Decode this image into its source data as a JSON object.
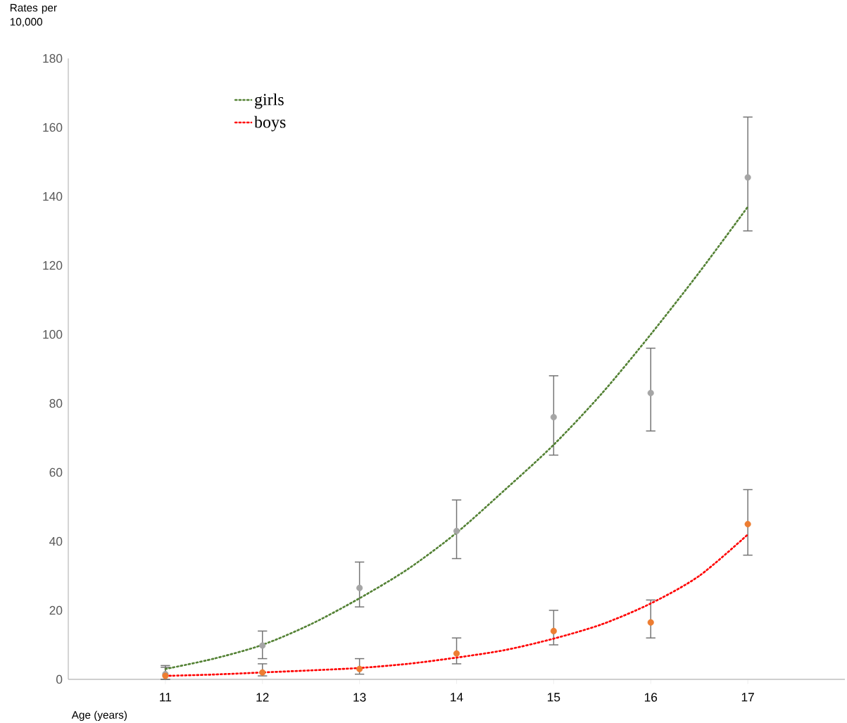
{
  "chart_data": {
    "type": "scatter",
    "xlabel": "Age (years)",
    "ylabel": "Rates per 10,000",
    "x": [
      11,
      12,
      13,
      14,
      15,
      16,
      17
    ],
    "xlim": [
      10,
      18
    ],
    "xticks": [
      11,
      12,
      13,
      14,
      15,
      16,
      17
    ],
    "ylim": [
      0,
      180
    ],
    "yticks": [
      0,
      20,
      40,
      60,
      80,
      100,
      120,
      140,
      160,
      180
    ],
    "grid": false,
    "legend": "top left",
    "series": [
      {
        "color": "#a5a5a5",
        "marker": "circle",
        "values": [
          1.5,
          9.8,
          26.5,
          43,
          76,
          83,
          145.5
        ],
        "errors": [
          [
            0,
            4
          ],
          [
            6,
            14
          ],
          [
            21,
            34
          ],
          [
            35,
            52
          ],
          [
            65,
            88
          ],
          [
            72,
            96
          ],
          [
            130,
            163
          ]
        ]
      },
      {
        "color": "#ed7d31",
        "marker": "circle",
        "values": [
          1,
          2,
          3,
          7.5,
          14,
          16.5,
          45
        ],
        "errors": [
          [
            0,
            3.5
          ],
          [
            1,
            4.5
          ],
          [
            1.5,
            6
          ],
          [
            4.5,
            12
          ],
          [
            10,
            20
          ],
          [
            12,
            23
          ],
          [
            36,
            55
          ]
        ]
      },
      {
        "name": "girls",
        "type": "line",
        "marker": "none",
        "line_style": "dotted",
        "color": "#548235",
        "x": [
          11,
          11.5,
          12,
          12.5,
          13,
          13.5,
          14,
          14.5,
          15,
          15.5,
          16,
          16.5,
          17
        ],
        "values": [
          3,
          6,
          10,
          16,
          23.5,
          32,
          42.5,
          55,
          68,
          83,
          100,
          118,
          137
        ]
      },
      {
        "name": "boys",
        "type": "line",
        "marker": "none",
        "line_style": "dotted",
        "color": "#ff0000",
        "x": [
          11,
          11.5,
          12,
          12.5,
          13,
          13.5,
          14,
          14.5,
          15,
          15.5,
          16,
          16.5,
          17
        ],
        "values": [
          1,
          1.4,
          2,
          2.6,
          3.3,
          4.5,
          6.3,
          8.5,
          11.8,
          16,
          22,
          30,
          42
        ]
      }
    ]
  }
}
